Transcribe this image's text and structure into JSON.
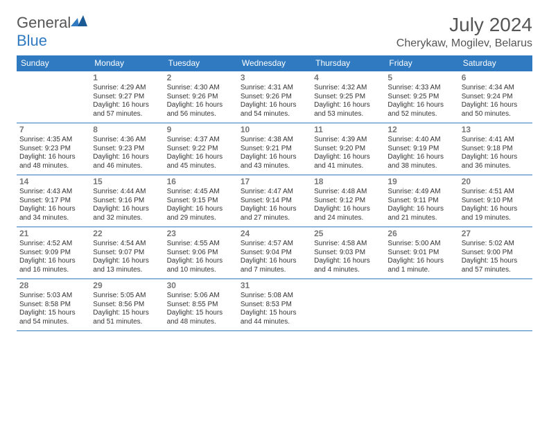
{
  "logo": {
    "text_general": "General",
    "text_blue": "Blue"
  },
  "title": "July 2024",
  "location": "Cherykaw, Mogilev, Belarus",
  "colors": {
    "accent": "#2f7ac0",
    "text": "#333333",
    "muted": "#777777",
    "bg": "#ffffff"
  },
  "day_headers": [
    "Sunday",
    "Monday",
    "Tuesday",
    "Wednesday",
    "Thursday",
    "Friday",
    "Saturday"
  ],
  "weeks": [
    [
      {
        "n": "",
        "sr": "",
        "ss": "",
        "dl": ""
      },
      {
        "n": "1",
        "sr": "Sunrise: 4:29 AM",
        "ss": "Sunset: 9:27 PM",
        "dl": "Daylight: 16 hours and 57 minutes."
      },
      {
        "n": "2",
        "sr": "Sunrise: 4:30 AM",
        "ss": "Sunset: 9:26 PM",
        "dl": "Daylight: 16 hours and 56 minutes."
      },
      {
        "n": "3",
        "sr": "Sunrise: 4:31 AM",
        "ss": "Sunset: 9:26 PM",
        "dl": "Daylight: 16 hours and 54 minutes."
      },
      {
        "n": "4",
        "sr": "Sunrise: 4:32 AM",
        "ss": "Sunset: 9:25 PM",
        "dl": "Daylight: 16 hours and 53 minutes."
      },
      {
        "n": "5",
        "sr": "Sunrise: 4:33 AM",
        "ss": "Sunset: 9:25 PM",
        "dl": "Daylight: 16 hours and 52 minutes."
      },
      {
        "n": "6",
        "sr": "Sunrise: 4:34 AM",
        "ss": "Sunset: 9:24 PM",
        "dl": "Daylight: 16 hours and 50 minutes."
      }
    ],
    [
      {
        "n": "7",
        "sr": "Sunrise: 4:35 AM",
        "ss": "Sunset: 9:23 PM",
        "dl": "Daylight: 16 hours and 48 minutes."
      },
      {
        "n": "8",
        "sr": "Sunrise: 4:36 AM",
        "ss": "Sunset: 9:23 PM",
        "dl": "Daylight: 16 hours and 46 minutes."
      },
      {
        "n": "9",
        "sr": "Sunrise: 4:37 AM",
        "ss": "Sunset: 9:22 PM",
        "dl": "Daylight: 16 hours and 45 minutes."
      },
      {
        "n": "10",
        "sr": "Sunrise: 4:38 AM",
        "ss": "Sunset: 9:21 PM",
        "dl": "Daylight: 16 hours and 43 minutes."
      },
      {
        "n": "11",
        "sr": "Sunrise: 4:39 AM",
        "ss": "Sunset: 9:20 PM",
        "dl": "Daylight: 16 hours and 41 minutes."
      },
      {
        "n": "12",
        "sr": "Sunrise: 4:40 AM",
        "ss": "Sunset: 9:19 PM",
        "dl": "Daylight: 16 hours and 38 minutes."
      },
      {
        "n": "13",
        "sr": "Sunrise: 4:41 AM",
        "ss": "Sunset: 9:18 PM",
        "dl": "Daylight: 16 hours and 36 minutes."
      }
    ],
    [
      {
        "n": "14",
        "sr": "Sunrise: 4:43 AM",
        "ss": "Sunset: 9:17 PM",
        "dl": "Daylight: 16 hours and 34 minutes."
      },
      {
        "n": "15",
        "sr": "Sunrise: 4:44 AM",
        "ss": "Sunset: 9:16 PM",
        "dl": "Daylight: 16 hours and 32 minutes."
      },
      {
        "n": "16",
        "sr": "Sunrise: 4:45 AM",
        "ss": "Sunset: 9:15 PM",
        "dl": "Daylight: 16 hours and 29 minutes."
      },
      {
        "n": "17",
        "sr": "Sunrise: 4:47 AM",
        "ss": "Sunset: 9:14 PM",
        "dl": "Daylight: 16 hours and 27 minutes."
      },
      {
        "n": "18",
        "sr": "Sunrise: 4:48 AM",
        "ss": "Sunset: 9:12 PM",
        "dl": "Daylight: 16 hours and 24 minutes."
      },
      {
        "n": "19",
        "sr": "Sunrise: 4:49 AM",
        "ss": "Sunset: 9:11 PM",
        "dl": "Daylight: 16 hours and 21 minutes."
      },
      {
        "n": "20",
        "sr": "Sunrise: 4:51 AM",
        "ss": "Sunset: 9:10 PM",
        "dl": "Daylight: 16 hours and 19 minutes."
      }
    ],
    [
      {
        "n": "21",
        "sr": "Sunrise: 4:52 AM",
        "ss": "Sunset: 9:09 PM",
        "dl": "Daylight: 16 hours and 16 minutes."
      },
      {
        "n": "22",
        "sr": "Sunrise: 4:54 AM",
        "ss": "Sunset: 9:07 PM",
        "dl": "Daylight: 16 hours and 13 minutes."
      },
      {
        "n": "23",
        "sr": "Sunrise: 4:55 AM",
        "ss": "Sunset: 9:06 PM",
        "dl": "Daylight: 16 hours and 10 minutes."
      },
      {
        "n": "24",
        "sr": "Sunrise: 4:57 AM",
        "ss": "Sunset: 9:04 PM",
        "dl": "Daylight: 16 hours and 7 minutes."
      },
      {
        "n": "25",
        "sr": "Sunrise: 4:58 AM",
        "ss": "Sunset: 9:03 PM",
        "dl": "Daylight: 16 hours and 4 minutes."
      },
      {
        "n": "26",
        "sr": "Sunrise: 5:00 AM",
        "ss": "Sunset: 9:01 PM",
        "dl": "Daylight: 16 hours and 1 minute."
      },
      {
        "n": "27",
        "sr": "Sunrise: 5:02 AM",
        "ss": "Sunset: 9:00 PM",
        "dl": "Daylight: 15 hours and 57 minutes."
      }
    ],
    [
      {
        "n": "28",
        "sr": "Sunrise: 5:03 AM",
        "ss": "Sunset: 8:58 PM",
        "dl": "Daylight: 15 hours and 54 minutes."
      },
      {
        "n": "29",
        "sr": "Sunrise: 5:05 AM",
        "ss": "Sunset: 8:56 PM",
        "dl": "Daylight: 15 hours and 51 minutes."
      },
      {
        "n": "30",
        "sr": "Sunrise: 5:06 AM",
        "ss": "Sunset: 8:55 PM",
        "dl": "Daylight: 15 hours and 48 minutes."
      },
      {
        "n": "31",
        "sr": "Sunrise: 5:08 AM",
        "ss": "Sunset: 8:53 PM",
        "dl": "Daylight: 15 hours and 44 minutes."
      },
      {
        "n": "",
        "sr": "",
        "ss": "",
        "dl": ""
      },
      {
        "n": "",
        "sr": "",
        "ss": "",
        "dl": ""
      },
      {
        "n": "",
        "sr": "",
        "ss": "",
        "dl": ""
      }
    ]
  ]
}
